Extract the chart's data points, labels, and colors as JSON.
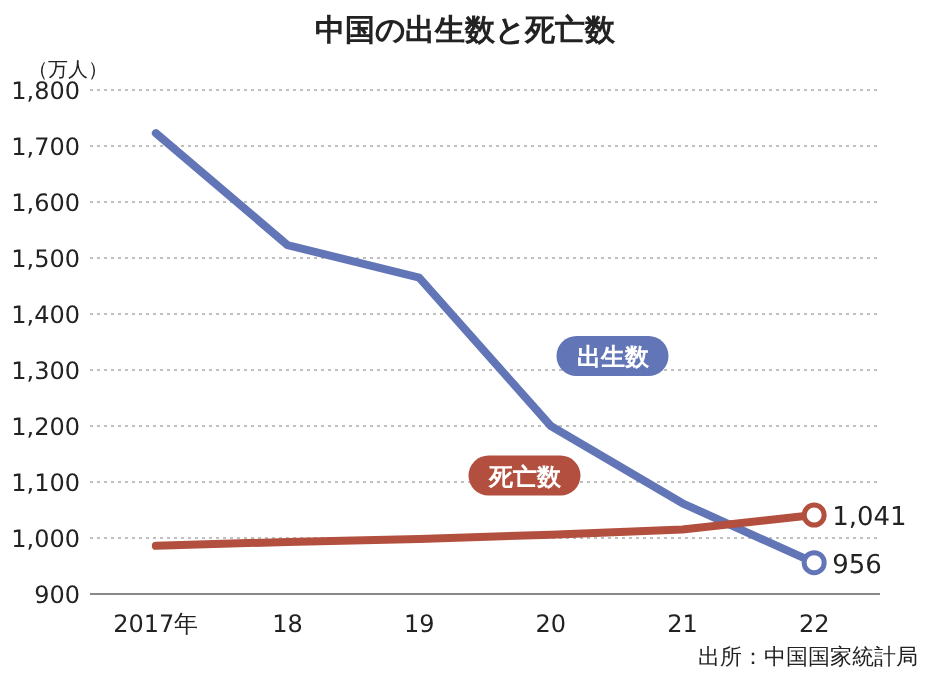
{
  "chart_data": {
    "type": "line",
    "title": "中国の出生数と死亡数",
    "ylabel": "（万人）",
    "categories": [
      "2017年",
      "18",
      "19",
      "20",
      "21",
      "22"
    ],
    "series": [
      {
        "name": "出生数",
        "color": "#6275b7",
        "values": [
          1723,
          1523,
          1465,
          1200,
          1062,
          956
        ],
        "value_labels": [
          null,
          null,
          null,
          null,
          null,
          "956"
        ]
      },
      {
        "name": "死亡数",
        "color": "#b24f3e",
        "values": [
          986,
          993,
          998,
          1006,
          1015,
          1041
        ],
        "value_labels": [
          null,
          null,
          null,
          null,
          null,
          "1,041"
        ]
      }
    ],
    "ylim": [
      900,
      1800
    ],
    "yticks": [
      {
        "value": 900,
        "label": "900"
      },
      {
        "value": 1000,
        "label": "1,000"
      },
      {
        "value": 1100,
        "label": "1,100"
      },
      {
        "value": 1200,
        "label": "1,200"
      },
      {
        "value": 1300,
        "label": "1,300"
      },
      {
        "value": 1400,
        "label": "1,400"
      },
      {
        "value": 1500,
        "label": "1,500"
      },
      {
        "value": 1600,
        "label": "1,600"
      },
      {
        "value": 1700,
        "label": "1,700"
      },
      {
        "value": 1800,
        "label": "1,800"
      }
    ],
    "grid": "y",
    "annotations": [
      "出所：中国国家統計局"
    ]
  }
}
